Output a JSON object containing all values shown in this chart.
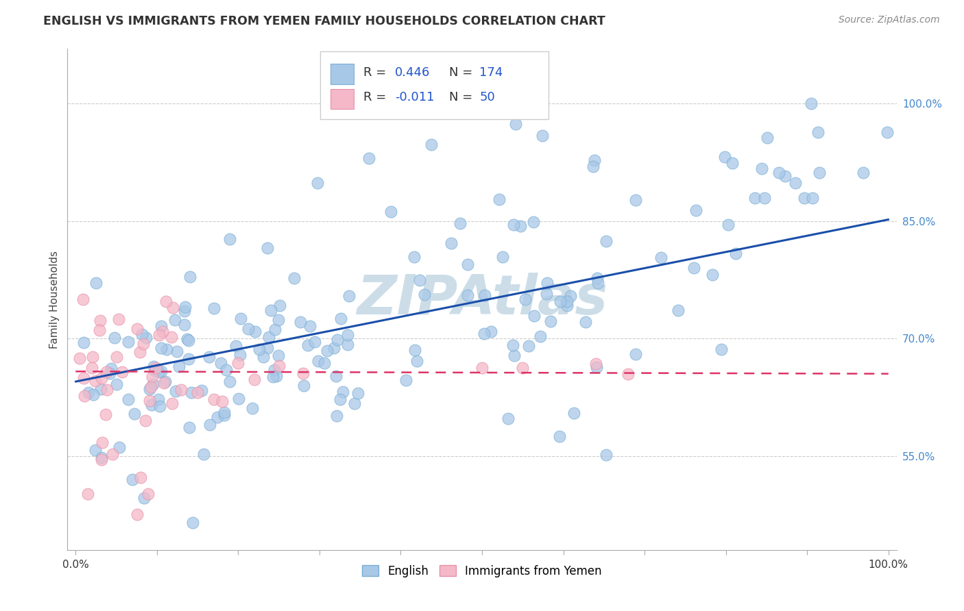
{
  "title": "ENGLISH VS IMMIGRANTS FROM YEMEN FAMILY HOUSEHOLDS CORRELATION CHART",
  "source": "Source: ZipAtlas.com",
  "ylabel": "Family Households",
  "english_color": "#a8c8e8",
  "english_edge": "#7aaed4",
  "yemen_color": "#f4b8c8",
  "yemen_edge": "#e890a8",
  "trend_english_color": "#1a4faa",
  "trend_yemen_color": "#dd3366",
  "watermark": "ZIPAtlas",
  "watermark_color": "#ccdde8",
  "title_color": "#333333",
  "title_fontsize": 12.5,
  "source_fontsize": 10,
  "ylabel_fontsize": 11,
  "legend_r_color": "#2255cc",
  "legend_n_color": "#2255cc",
  "ytick_color": "#4488cc",
  "ylim": [
    0.43,
    1.07
  ],
  "xlim": [
    -0.01,
    1.01
  ],
  "ytick_positions": [
    0.55,
    0.7,
    0.85,
    1.0
  ],
  "ytick_labels": [
    "55.0%",
    "70.0%",
    "85.0%",
    "100.0%"
  ],
  "xtick_positions": [
    0.0,
    0.1,
    0.2,
    0.3,
    0.4,
    0.5,
    0.6,
    0.7,
    0.8,
    0.9,
    1.0
  ],
  "trend_eng_x0": 0.0,
  "trend_eng_y0": 0.645,
  "trend_eng_x1": 1.0,
  "trend_eng_y1": 0.852,
  "trend_yem_x0": 0.0,
  "trend_yem_y0": 0.658,
  "trend_yem_x1": 1.0,
  "trend_yem_y1": 0.655
}
